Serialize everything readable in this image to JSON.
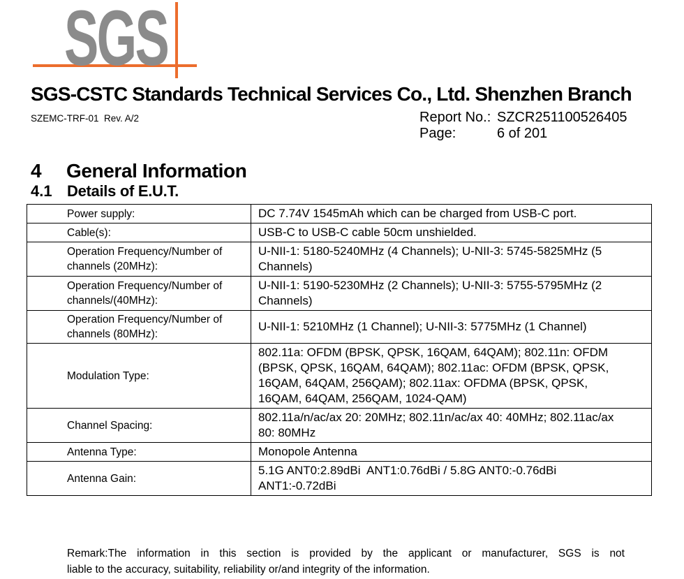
{
  "colors": {
    "logo_gray": "#8b8b8b",
    "logo_orange": "#ec6d2d",
    "text": "#000000"
  },
  "logo": {
    "text": "SGS"
  },
  "header": {
    "company": "SGS-CSTC Standards Technical Services Co., Ltd. Shenzhen Branch",
    "form_code": "SZEMC-TRF-01  Rev. A/2",
    "report_no_label": "Report No.:",
    "report_no_value": "SZCR251100526405",
    "page_label": "Page:",
    "page_value": "6 of 201"
  },
  "section": {
    "number": "4",
    "title": "General Information"
  },
  "subsection": {
    "number": "4.1",
    "title": "Details of E.U.T."
  },
  "eut_table": {
    "rows": [
      {
        "label": "Power supply:",
        "value": "DC 7.74V 1545mAh which can be charged from USB-C port."
      },
      {
        "label": "Cable(s):",
        "value": "USB-C to USB-C cable 50cm unshielded."
      },
      {
        "label": "Operation Frequency/Number of channels (20MHz):",
        "value": "U-NII-1: 5180-5240MHz (4 Channels); U-NII-3: 5745-5825MHz (5 Channels)"
      },
      {
        "label": "Operation Frequency/Number of channels/(40MHz):",
        "value": "U-NII-1: 5190-5230MHz (2 Channels); U-NII-3: 5755-5795MHz (2 Channels)"
      },
      {
        "label": "Operation Frequency/Number of channels (80MHz):",
        "value": "U-NII-1: 5210MHz (1 Channel); U-NII-3: 5775MHz (1 Channel)"
      },
      {
        "label": "Modulation Type:",
        "value": "802.11a: OFDM (BPSK, QPSK, 16QAM, 64QAM); 802.11n: OFDM (BPSK, QPSK, 16QAM, 64QAM); 802.11ac: OFDM (BPSK, QPSK, 16QAM, 64QAM, 256QAM); 802.11ax: OFDMA (BPSK, QPSK, 16QAM, 64QAM, 256QAM, 1024-QAM)"
      },
      {
        "label": "Channel Spacing:",
        "value": "802.11a/n/ac/ax 20: 20MHz; 802.11n/ac/ax 40: 40MHz; 802.11ac/ax 80: 80MHz"
      },
      {
        "label": "Antenna Type:",
        "value": "Monopole Antenna"
      },
      {
        "label": "Antenna Gain:",
        "value": "5.1G ANT0:2.89dBi  ANT1:0.76dBi / 5.8G ANT0:-0.76dBi  ANT1:-0.72dBi"
      }
    ]
  },
  "remark": {
    "line1": "Remark:The information in this section is provided by the applicant or manufacturer, SGS is not",
    "line2": "liable to the accuracy, suitability, reliability or/and integrity of the information."
  }
}
